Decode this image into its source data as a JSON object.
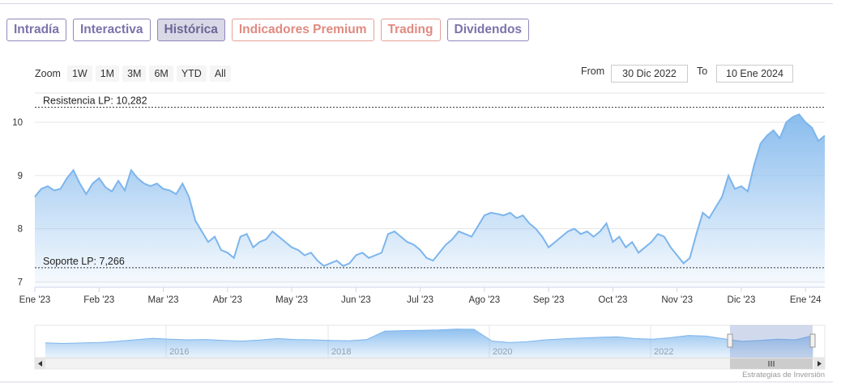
{
  "tabs": [
    {
      "label": "Intradía",
      "style": "violet"
    },
    {
      "label": "Interactiva",
      "style": "violet"
    },
    {
      "label": "Histórica",
      "style": "active"
    },
    {
      "label": "Indicadores Premium",
      "style": "salmon"
    },
    {
      "label": "Trading",
      "style": "salmon"
    },
    {
      "label": "Dividendos",
      "style": "violet"
    }
  ],
  "toolbar": {
    "zoom_label": "Zoom",
    "zoom_buttons": [
      "1W",
      "1M",
      "3M",
      "6M",
      "YTD",
      "All"
    ],
    "from_label": "From",
    "from_value": "30 Dic 2022",
    "to_label": "To",
    "to_value": "10 Ene 2024"
  },
  "credits": "Estrategias de Inversión",
  "colors": {
    "line": "#7cb5ec",
    "accent_violet": "#7b73ab",
    "accent_salmon": "#e08a80"
  },
  "chart_data": {
    "type": "area",
    "ylim": [
      6.9,
      10.55
    ],
    "yticks": [
      7,
      8,
      9,
      10
    ],
    "xticks": [
      {
        "label": "Ene '23",
        "x": 0
      },
      {
        "label": "Feb '23",
        "x": 1
      },
      {
        "label": "Mar '23",
        "x": 2
      },
      {
        "label": "Abr '23",
        "x": 3
      },
      {
        "label": "May '23",
        "x": 4
      },
      {
        "label": "Jun '23",
        "x": 5
      },
      {
        "label": "Jul '23",
        "x": 6
      },
      {
        "label": "Ago '23",
        "x": 7
      },
      {
        "label": "Sep '23",
        "x": 8
      },
      {
        "label": "Oct '23",
        "x": 9
      },
      {
        "label": "Nov '23",
        "x": 10
      },
      {
        "label": "Dic '23",
        "x": 11
      },
      {
        "label": "Ene '24",
        "x": 12
      }
    ],
    "x": [
      0,
      0.1,
      0.2,
      0.3,
      0.4,
      0.5,
      0.6,
      0.7,
      0.8,
      0.9,
      1.0,
      1.1,
      1.2,
      1.3,
      1.4,
      1.5,
      1.6,
      1.7,
      1.8,
      1.9,
      2.0,
      2.1,
      2.2,
      2.3,
      2.4,
      2.5,
      2.6,
      2.7,
      2.8,
      2.9,
      3.0,
      3.1,
      3.2,
      3.3,
      3.4,
      3.5,
      3.6,
      3.7,
      3.8,
      3.9,
      4.0,
      4.1,
      4.2,
      4.3,
      4.4,
      4.5,
      4.6,
      4.7,
      4.8,
      4.9,
      5.0,
      5.1,
      5.2,
      5.3,
      5.4,
      5.5,
      5.6,
      5.7,
      5.8,
      5.9,
      6.0,
      6.1,
      6.2,
      6.3,
      6.4,
      6.5,
      6.6,
      6.7,
      6.8,
      6.9,
      7.0,
      7.1,
      7.2,
      7.3,
      7.4,
      7.5,
      7.6,
      7.7,
      7.8,
      7.9,
      8.0,
      8.1,
      8.2,
      8.3,
      8.4,
      8.5,
      8.6,
      8.7,
      8.8,
      8.9,
      9.0,
      9.1,
      9.2,
      9.3,
      9.4,
      9.5,
      9.6,
      9.7,
      9.8,
      9.9,
      10.0,
      10.1,
      10.2,
      10.3,
      10.4,
      10.5,
      10.6,
      10.7,
      10.8,
      10.9,
      11.0,
      11.1,
      11.2,
      11.3,
      11.4,
      11.5,
      11.6,
      11.7,
      11.8,
      11.9,
      12.0,
      12.1,
      12.2,
      12.3
    ],
    "series": [
      {
        "values": [
          8.6,
          8.75,
          8.8,
          8.72,
          8.75,
          8.95,
          9.1,
          8.85,
          8.65,
          8.85,
          8.95,
          8.78,
          8.7,
          8.9,
          8.72,
          9.1,
          8.95,
          8.85,
          8.8,
          8.85,
          8.75,
          8.72,
          8.65,
          8.85,
          8.6,
          8.15,
          7.95,
          7.75,
          7.85,
          7.6,
          7.55,
          7.45,
          7.85,
          7.9,
          7.65,
          7.75,
          7.8,
          7.95,
          7.85,
          7.75,
          7.65,
          7.6,
          7.5,
          7.55,
          7.4,
          7.3,
          7.35,
          7.4,
          7.3,
          7.35,
          7.5,
          7.55,
          7.45,
          7.5,
          7.55,
          7.9,
          7.95,
          7.85,
          7.75,
          7.7,
          7.6,
          7.45,
          7.4,
          7.55,
          7.7,
          7.8,
          7.95,
          7.9,
          7.85,
          8.05,
          8.25,
          8.3,
          8.28,
          8.25,
          8.3,
          8.2,
          8.25,
          8.1,
          8.0,
          7.85,
          7.65,
          7.75,
          7.85,
          7.95,
          8.0,
          7.9,
          7.95,
          7.85,
          7.95,
          8.1,
          7.75,
          7.85,
          7.65,
          7.75,
          7.55,
          7.65,
          7.75,
          7.9,
          7.85,
          7.65,
          7.5,
          7.35,
          7.45,
          7.9,
          8.3,
          8.2,
          8.4,
          8.6,
          9.0,
          8.75,
          8.8,
          8.7,
          9.2,
          9.6,
          9.75,
          9.85,
          9.7,
          10.0,
          10.1,
          10.15,
          10.0,
          9.9,
          9.65,
          9.75
        ]
      }
    ],
    "annotations": [
      {
        "label": "Resistencia LP: 10,282",
        "value": 10.282
      },
      {
        "label": "Soporte LP: 7,266",
        "value": 7.266
      }
    ],
    "grid": true,
    "navigator": {
      "xticks": [
        "2016",
        "2018",
        "2020",
        "2022"
      ],
      "values": [
        4.8,
        4.6,
        4.75,
        4.9,
        5.3,
        5.8,
        6.3,
        6.0,
        5.8,
        5.9,
        5.6,
        5.4,
        5.7,
        6.2,
        5.9,
        5.8,
        5.6,
        5.5,
        5.9,
        8.6,
        8.8,
        8.9,
        9.0,
        9.3,
        9.2,
        5.4,
        4.9,
        5.2,
        5.8,
        6.1,
        6.4,
        6.6,
        6.8,
        6.2,
        6.0,
        6.5,
        7.2,
        7.0,
        6.1,
        5.3,
        5.6,
        6.0,
        5.8,
        7.2
      ]
    }
  }
}
